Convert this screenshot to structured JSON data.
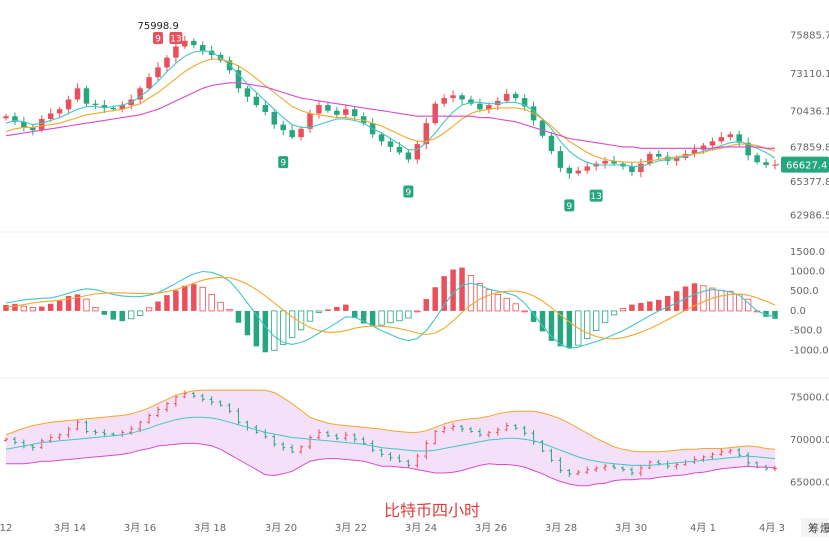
{
  "caption": "比特币四小时",
  "side_buttons": [
    "筹",
    "爆"
  ],
  "colors": {
    "up": "#e9505b",
    "down": "#26a67e",
    "ma_fast": "#43c6c4",
    "ma_mid": "#f4a72d",
    "ma_slow": "#d94bcd",
    "macd_dif": "#43c6c4",
    "macd_dea": "#f4a72d",
    "boll_band_fill": "#f0d6f5",
    "boll_upper": "#f4a72d",
    "boll_lower": "#d94bcd",
    "boll_mid": "#43c6c4",
    "marker_up": "#e9505b",
    "marker_down": "#26a67e",
    "caption": "#e23c3c"
  },
  "chart_data": [
    {
      "type": "candlestick",
      "id": "price",
      "y_ticks": [
        "75885.7",
        "73110.1",
        "70436.1",
        "67859.8",
        "65377.8",
        "62986.5"
      ],
      "y_tick_values": [
        75885.7,
        73110.1,
        70436.1,
        67859.8,
        65377.8,
        62986.5
      ],
      "ylim": [
        62300,
        77000
      ],
      "current_price": "66627.4",
      "current_price_value": 66627.4,
      "high_label": "75998.9",
      "series": [
        {
          "name": "close",
          "values": [
            70100,
            69700,
            69300,
            69100,
            69900,
            70300,
            70600,
            71300,
            72100,
            71000,
            70900,
            70700,
            70600,
            70900,
            71300,
            72100,
            72900,
            73600,
            74300,
            75100,
            75500,
            75200,
            74800,
            74500,
            74100,
            73400,
            72100,
            71500,
            70900,
            70400,
            69500,
            69100,
            68600,
            69200,
            70300,
            70900,
            70500,
            70200,
            70600,
            70100,
            69600,
            68800,
            68300,
            67900,
            67500,
            67000,
            68100,
            69600,
            71000,
            71400,
            71600,
            71300,
            71000,
            70600,
            70900,
            71200,
            71700,
            71400,
            70800,
            69800,
            68700,
            67600,
            66400,
            66000,
            66200,
            66500,
            66700,
            66900,
            66700,
            66500,
            66100,
            66700,
            67400,
            67200,
            66900,
            67100,
            67400,
            67700,
            68000,
            68300,
            68600,
            68800,
            68200,
            67300,
            66800,
            66600,
            66627.4
          ]
        },
        {
          "name": "ma_fast",
          "values": [
            69600,
            69800,
            69700,
            69500,
            69600,
            69800,
            70000,
            70300,
            70600,
            70800,
            70800,
            70700,
            70800,
            70900,
            71100,
            71500,
            72000,
            72600,
            73300,
            73900,
            74400,
            74700,
            74800,
            74700,
            74300,
            73800,
            73100,
            72400,
            71800,
            71200,
            70600,
            70000,
            69500,
            69300,
            69300,
            69500,
            69700,
            69900,
            69900,
            69800,
            69600,
            69200,
            68900,
            68500,
            68100,
            67700,
            67700,
            68200,
            68900,
            69700,
            70400,
            70900,
            71100,
            71100,
            71000,
            71000,
            71100,
            71100,
            70900,
            70500,
            69900,
            69200,
            68300,
            67600,
            67100,
            66800,
            66600,
            66600,
            66600,
            66600,
            66500,
            66500,
            66700,
            66900,
            67000,
            67100,
            67200,
            67400,
            67600,
            67800,
            68000,
            68200,
            68300,
            68100,
            67800,
            67500,
            67100
          ]
        },
        {
          "name": "ma_mid",
          "values": [
            69000,
            69200,
            69300,
            69300,
            69400,
            69500,
            69600,
            69800,
            70000,
            70200,
            70300,
            70400,
            70500,
            70600,
            70800,
            71000,
            71400,
            71800,
            72300,
            72800,
            73300,
            73700,
            74000,
            74200,
            74200,
            74000,
            73700,
            73300,
            72800,
            72300,
            71800,
            71300,
            70800,
            70500,
            70300,
            70200,
            70100,
            70000,
            70000,
            69900,
            69800,
            69600,
            69400,
            69100,
            68800,
            68500,
            68300,
            68300,
            68500,
            68900,
            69400,
            69900,
            70300,
            70500,
            70600,
            70700,
            70700,
            70700,
            70600,
            70300,
            69900,
            69400,
            68800,
            68300,
            67900,
            67500,
            67200,
            67000,
            66900,
            66800,
            66800,
            66800,
            66900,
            67000,
            67100,
            67200,
            67300,
            67400,
            67500,
            67700,
            67800,
            68000,
            68100,
            68100,
            68000,
            67800,
            67600
          ]
        },
        {
          "name": "ma_slow",
          "values": [
            68700,
            68800,
            68900,
            69000,
            69100,
            69200,
            69300,
            69400,
            69500,
            69600,
            69700,
            69800,
            69900,
            70000,
            70100,
            70200,
            70400,
            70600,
            70900,
            71200,
            71500,
            71800,
            72100,
            72300,
            72400,
            72500,
            72500,
            72400,
            72300,
            72200,
            72000,
            71800,
            71600,
            71400,
            71300,
            71200,
            71100,
            71000,
            70900,
            70800,
            70700,
            70600,
            70500,
            70400,
            70300,
            70200,
            70100,
            70100,
            70100,
            70100,
            70100,
            70100,
            70100,
            70000,
            70000,
            69900,
            69800,
            69700,
            69500,
            69300,
            69100,
            68900,
            68700,
            68500,
            68400,
            68300,
            68200,
            68100,
            68000,
            67900,
            67900,
            67800,
            67800,
            67800,
            67800,
            67800,
            67800,
            67800,
            67800,
            67800,
            67900,
            67900,
            67900,
            67900,
            67900,
            67800,
            67800
          ]
        }
      ],
      "markers": [
        {
          "label": "9",
          "index": 17,
          "kind": "up"
        },
        {
          "label": "13",
          "index": 19,
          "kind": "up"
        },
        {
          "label": "9",
          "index": 31,
          "kind": "down"
        },
        {
          "label": "9",
          "index": 45,
          "kind": "down"
        },
        {
          "label": "9",
          "index": 63,
          "kind": "down"
        },
        {
          "label": "13",
          "index": 66,
          "kind": "down"
        }
      ]
    },
    {
      "type": "bar",
      "id": "macd",
      "y_ticks": [
        "1500.0",
        "1000.0",
        "500.0",
        "0.0",
        "-500.0",
        "-1000.0"
      ],
      "y_tick_values": [
        1500,
        1000,
        500,
        0,
        -500,
        -1000
      ],
      "ylim": [
        -1500,
        1800
      ],
      "series": [
        {
          "name": "histogram",
          "values": [
            150,
            180,
            120,
            90,
            110,
            180,
            260,
            380,
            420,
            300,
            90,
            -100,
            -220,
            -260,
            -200,
            -120,
            80,
            240,
            400,
            520,
            640,
            680,
            600,
            420,
            220,
            40,
            -300,
            -620,
            -900,
            -1050,
            -1000,
            -850,
            -680,
            -480,
            -260,
            -40,
            40,
            100,
            160,
            -180,
            -320,
            -380,
            -360,
            -300,
            -250,
            -180,
            0,
            300,
            600,
            880,
            1050,
            1100,
            900,
            700,
            540,
            420,
            320,
            180,
            0,
            -280,
            -520,
            -760,
            -900,
            -950,
            -870,
            -700,
            -500,
            -300,
            -100,
            60,
            160,
            200,
            240,
            280,
            380,
            500,
            620,
            700,
            640,
            580,
            520,
            500,
            420,
            300,
            0,
            -150,
            -200
          ]
        },
        {
          "name": "dif",
          "values": [
            200,
            240,
            280,
            300,
            320,
            330,
            380,
            450,
            520,
            560,
            540,
            480,
            420,
            380,
            360,
            360,
            400,
            460,
            580,
            700,
            830,
            940,
            1000,
            980,
            900,
            760,
            500,
            200,
            -100,
            -400,
            -650,
            -800,
            -850,
            -800,
            -700,
            -560,
            -440,
            -300,
            -150,
            -160,
            -260,
            -380,
            -500,
            -600,
            -700,
            -750,
            -700,
            -500,
            -200,
            150,
            450,
            650,
            700,
            650,
            550,
            500,
            460,
            380,
            200,
            -80,
            -380,
            -650,
            -850,
            -950,
            -920,
            -850,
            -780,
            -700,
            -600,
            -500,
            -380,
            -250,
            -120,
            0,
            100,
            200,
            320,
            420,
            500,
            540,
            520,
            480,
            400,
            200,
            0,
            -100,
            -150
          ]
        },
        {
          "name": "dea",
          "values": [
            100,
            120,
            160,
            200,
            230,
            250,
            270,
            300,
            340,
            390,
            430,
            450,
            460,
            460,
            450,
            440,
            440,
            450,
            490,
            540,
            620,
            700,
            780,
            830,
            850,
            840,
            780,
            680,
            540,
            380,
            200,
            20,
            -150,
            -300,
            -420,
            -500,
            -540,
            -540,
            -500,
            -440,
            -400,
            -380,
            -390,
            -410,
            -450,
            -500,
            -560,
            -600,
            -560,
            -440,
            -250,
            -40,
            150,
            300,
            400,
            470,
            500,
            500,
            470,
            380,
            250,
            80,
            -100,
            -280,
            -440,
            -560,
            -650,
            -700,
            -710,
            -680,
            -620,
            -540,
            -450,
            -340,
            -220,
            -100,
            20,
            130,
            230,
            320,
            380,
            420,
            430,
            400,
            330,
            250,
            150
          ]
        }
      ]
    },
    {
      "type": "area",
      "id": "boll",
      "y_ticks": [
        "75000.0",
        "70000.0",
        "65000.0"
      ],
      "y_tick_values": [
        75000,
        70000,
        65000
      ],
      "ylim": [
        63500,
        76500
      ],
      "series": [
        {
          "name": "upper",
          "values": [
            70600,
            71000,
            71400,
            71700,
            71900,
            72100,
            72200,
            72300,
            72400,
            72500,
            72600,
            72700,
            72800,
            72900,
            73100,
            73400,
            73800,
            74300,
            74800,
            75300,
            75600,
            75800,
            75900,
            75900,
            75900,
            75900,
            75900,
            75900,
            75900,
            75900,
            75600,
            75000,
            74300,
            73500,
            72700,
            72300,
            72000,
            71800,
            71700,
            71600,
            71500,
            71400,
            71300,
            71100,
            71000,
            70900,
            70900,
            71100,
            71500,
            71900,
            72200,
            72400,
            72500,
            72600,
            72800,
            73100,
            73300,
            73400,
            73400,
            73400,
            73200,
            72900,
            72500,
            72000,
            71400,
            70800,
            70200,
            69700,
            69200,
            68900,
            68700,
            68600,
            68600,
            68600,
            68700,
            68800,
            68900,
            68900,
            69000,
            69000,
            69000,
            69100,
            69200,
            69300,
            69200,
            69000,
            68900
          ]
        },
        {
          "name": "middle",
          "values": [
            68900,
            69100,
            69300,
            69500,
            69700,
            69800,
            69900,
            70000,
            70100,
            70200,
            70300,
            70400,
            70500,
            70600,
            70800,
            71100,
            71400,
            71800,
            72100,
            72400,
            72600,
            72700,
            72700,
            72600,
            72400,
            72100,
            71800,
            71500,
            71200,
            70900,
            70700,
            70500,
            70300,
            70200,
            70100,
            70000,
            69900,
            69800,
            69700,
            69600,
            69500,
            69300,
            69100,
            69000,
            68900,
            68800,
            68700,
            68700,
            68800,
            69000,
            69200,
            69400,
            69600,
            69800,
            70000,
            70100,
            70200,
            70200,
            70100,
            69900,
            69600,
            69200,
            68800,
            68400,
            68000,
            67700,
            67500,
            67300,
            67200,
            67100,
            67000,
            67000,
            67000,
            67100,
            67200,
            67300,
            67400,
            67500,
            67600,
            67700,
            67800,
            67900,
            68000,
            68100,
            68000,
            67900,
            67800
          ]
        },
        {
          "name": "lower",
          "values": [
            67200,
            67200,
            67200,
            67300,
            67500,
            67500,
            67600,
            67700,
            67800,
            67900,
            68000,
            68100,
            68200,
            68300,
            68500,
            68800,
            69000,
            69300,
            69400,
            69500,
            69600,
            69600,
            69500,
            69300,
            68900,
            68300,
            67700,
            67100,
            66500,
            65900,
            65800,
            66000,
            66300,
            66900,
            67500,
            67700,
            67800,
            67800,
            67700,
            67600,
            67500,
            67200,
            66900,
            66900,
            66800,
            66700,
            66500,
            66300,
            66100,
            66100,
            66200,
            66400,
            66700,
            67000,
            67200,
            67100,
            67100,
            67000,
            66800,
            66400,
            66000,
            65500,
            65100,
            64800,
            64600,
            64600,
            64800,
            64900,
            65200,
            65300,
            65300,
            65400,
            65400,
            65600,
            65700,
            65800,
            65900,
            66100,
            66200,
            66400,
            66600,
            66700,
            66800,
            66900,
            66800,
            66800,
            66700
          ]
        }
      ]
    }
  ],
  "x_axis": {
    "labels": [
      "12",
      "3月 14",
      "3月 16",
      "3月 18",
      "3月 20",
      "3月 22",
      "3月 24",
      "3月 26",
      "3月 28",
      "3月 30",
      "4月 1",
      "4月 3"
    ]
  }
}
